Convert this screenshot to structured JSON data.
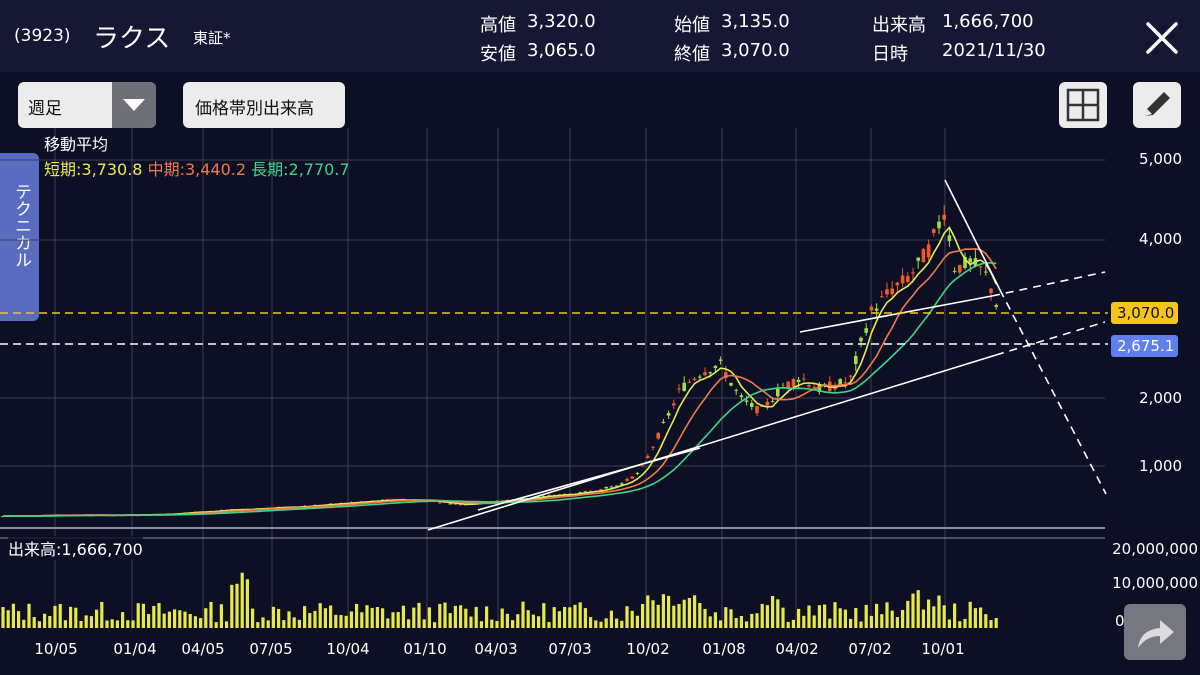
{
  "header": {
    "ticker": "(3923)",
    "name": "ラクス",
    "market": "東証*",
    "quotes": {
      "high_label": "高値",
      "high": "3,320.0",
      "low_label": "安値",
      "low": "3,065.0",
      "open_label": "始値",
      "open": "3,135.0",
      "close_label": "終値",
      "close": "3,070.0",
      "volume_label": "出来高",
      "volume": "1,666,700",
      "date_label": "日時",
      "date": "2021/11/30"
    }
  },
  "toolbar": {
    "period_select": "週足",
    "volume_by_price_button": "価格帯別出来高"
  },
  "side_tab": {
    "label": "テクニカル"
  },
  "moving_average": {
    "title": "移動平均",
    "short": "短期:3,730.8",
    "mid": "中期:3,440.2",
    "long": "長期:2,770.7"
  },
  "volume_panel": {
    "label": "出来高:1,666,700",
    "y_ticks": [
      "20,000,000",
      "10,000,000",
      "0"
    ]
  },
  "price_axis": {
    "ticks": [
      "5,000",
      "4,000",
      "3,000",
      "2,000",
      "1,000"
    ],
    "current_price_tag": "3,070.0",
    "line_price_tag": "2,675.1"
  },
  "x_axis": {
    "ticks": [
      "10/05",
      "01/04",
      "04/05",
      "07/05",
      "10/04",
      "01/10",
      "04/03",
      "07/03",
      "10/02",
      "01/08",
      "04/02",
      "07/02",
      "10/01"
    ]
  },
  "colors": {
    "background": "#0d0f24",
    "header": "#151733",
    "bullish": "#9be04a",
    "bearish": "#f05a28",
    "ma_short": "#e6e85a",
    "ma_mid": "#f07a4a",
    "ma_long": "#3fd48a",
    "current_price_tag": "#f5c518",
    "line_price_tag": "#5f7ef0",
    "volume": "#e8e84a"
  },
  "icons": {
    "close": "close-icon",
    "grid": "grid-icon",
    "pencil": "pencil-icon",
    "share": "share-icon",
    "dropdown": "chevron-down-icon"
  }
}
